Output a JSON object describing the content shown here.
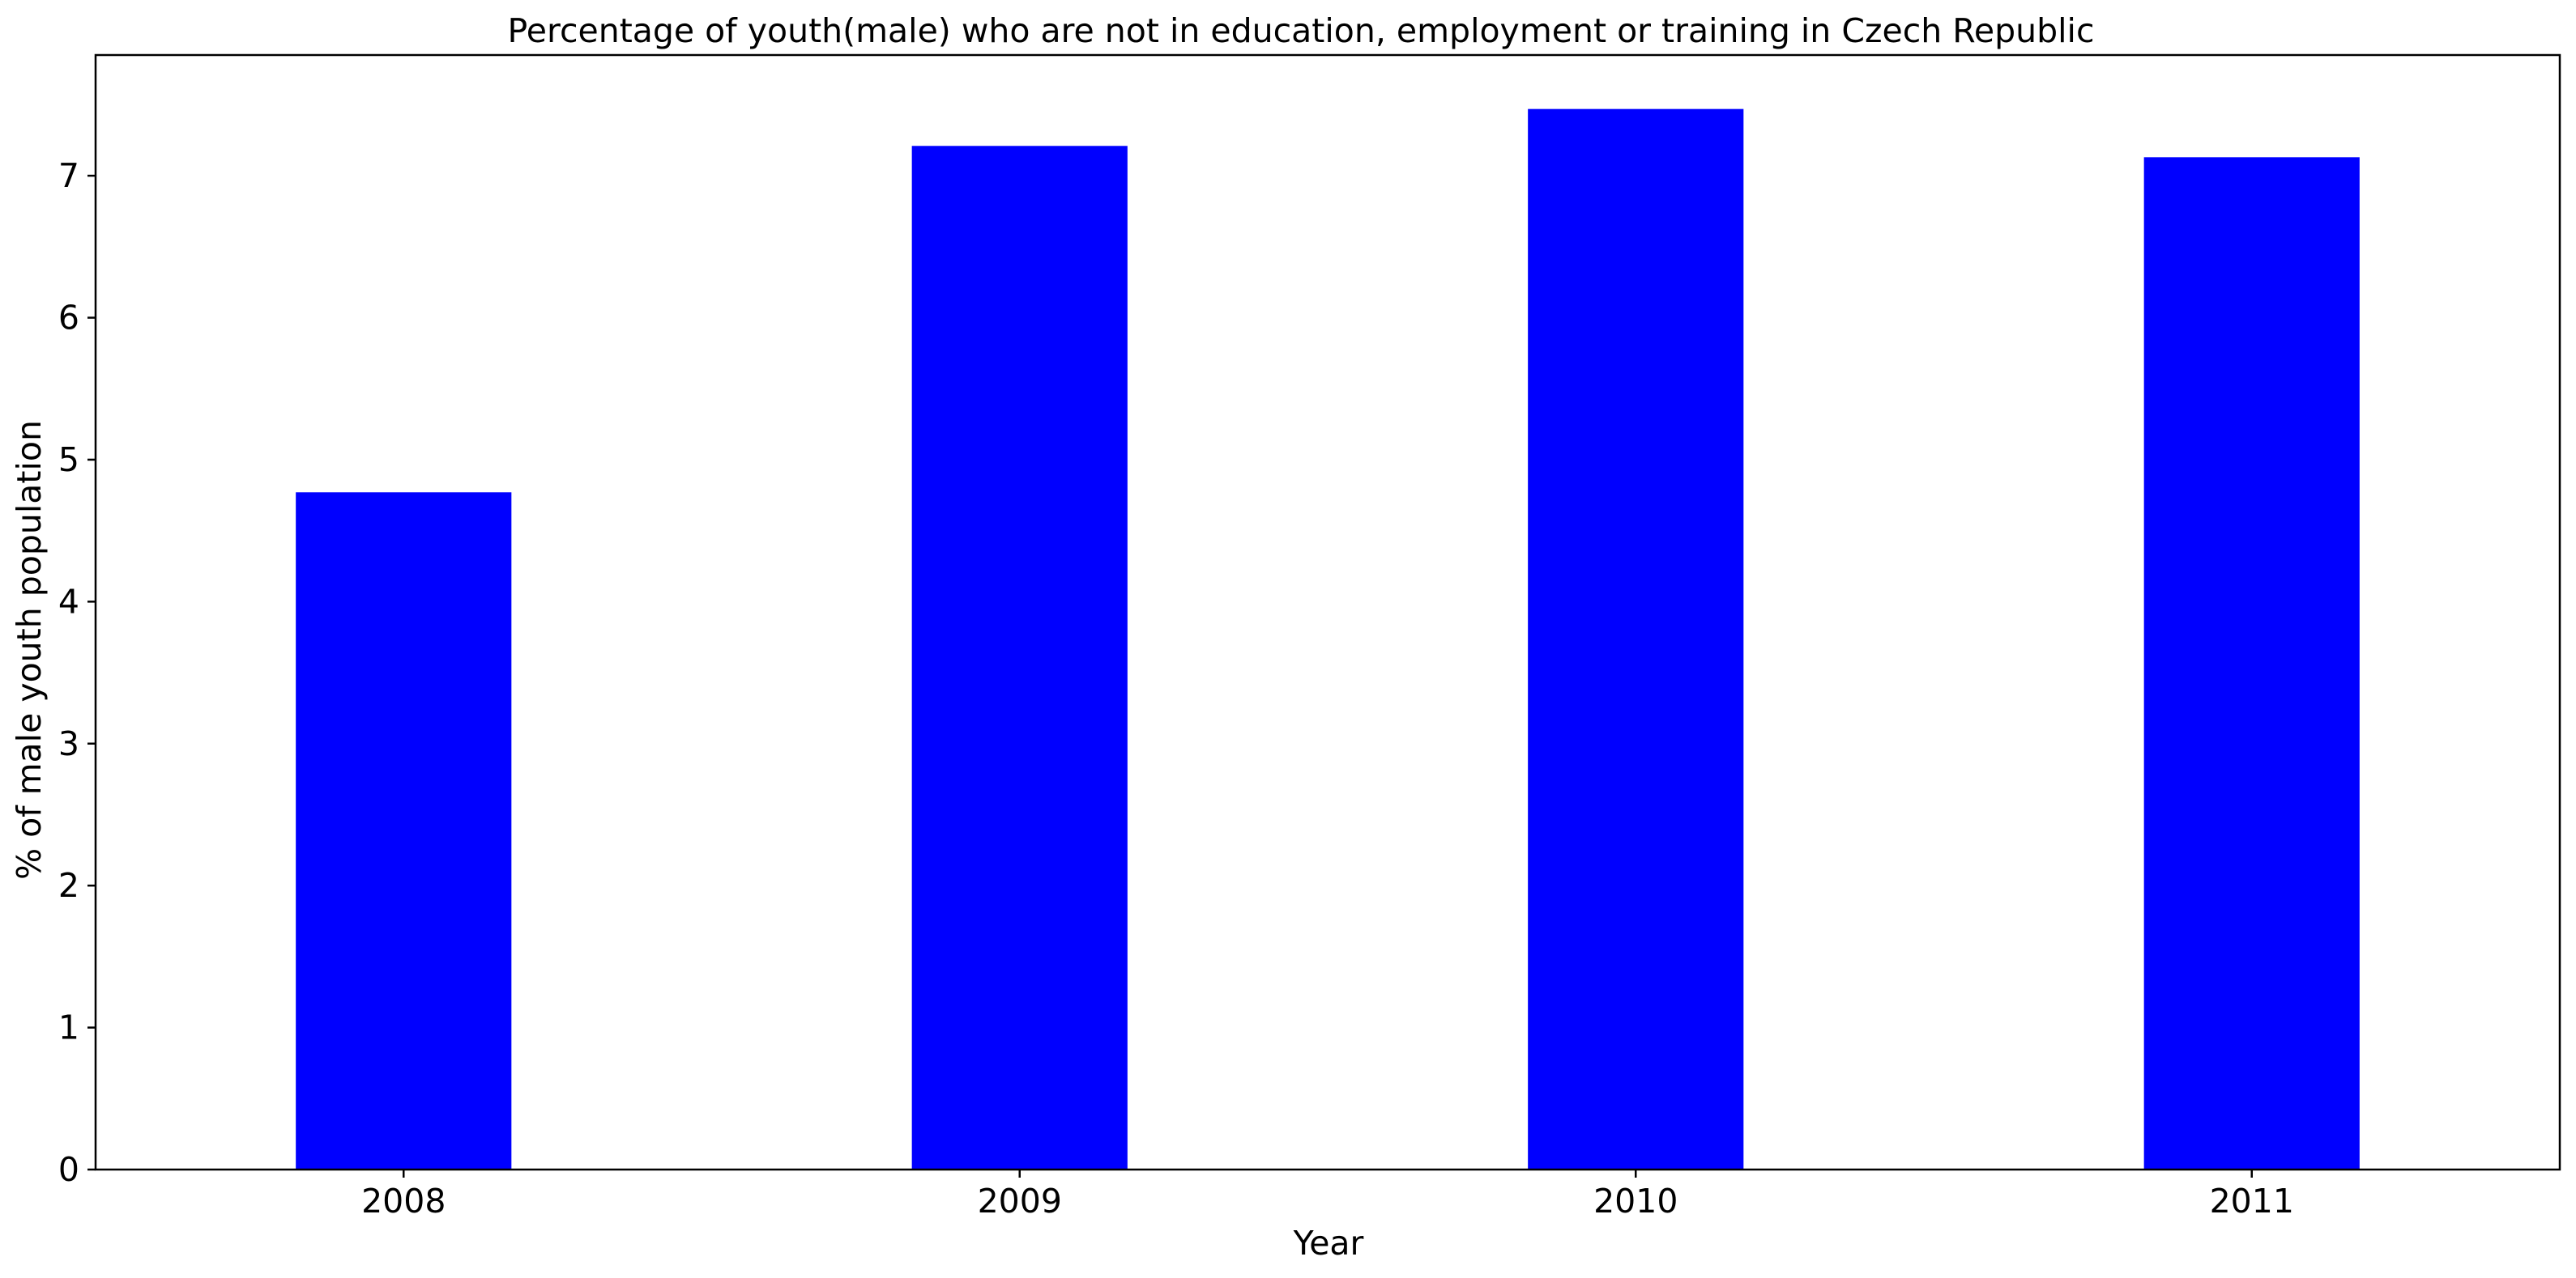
{
  "chart_data": {
    "type": "bar",
    "title": "Percentage of youth(male) who are not in education, employment or training in Czech Republic",
    "xlabel": "Year",
    "ylabel": "% of male youth population",
    "categories": [
      "2008",
      "2009",
      "2010",
      "2011"
    ],
    "values": [
      4.77,
      7.21,
      7.47,
      7.13
    ],
    "ylim": [
      0,
      7.85
    ],
    "yticks": [
      0,
      1,
      2,
      3,
      4,
      5,
      6,
      7
    ],
    "bar_color": "#0000ff",
    "grid": false,
    "legend": "none"
  }
}
